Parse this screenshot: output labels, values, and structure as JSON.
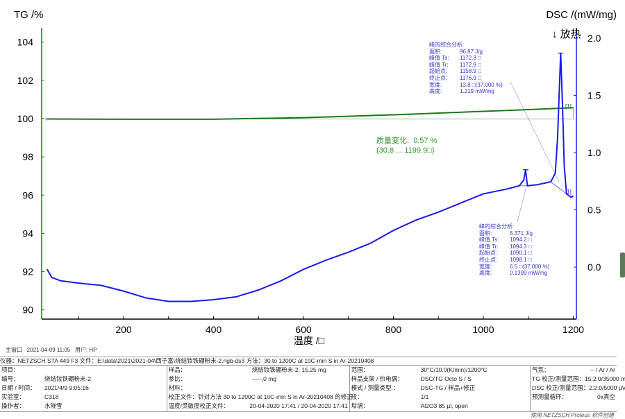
{
  "chart_data": {
    "type": "line",
    "xlabel": "温度 /□",
    "ylabel_left": "TG /%",
    "ylabel_right": "DSC /(mW/mg)",
    "exo_label": "↓ 放热",
    "xlim": [
      18,
      1207
    ],
    "ylim_left": [
      89.5,
      104.5
    ],
    "ylim_right": [
      -0.45,
      2.05
    ],
    "xticks": [
      200,
      400,
      600,
      800,
      1000,
      1200
    ],
    "yticks_left": [
      90,
      92,
      94,
      96,
      98,
      100,
      102,
      104
    ],
    "yticks_right": [
      0.0,
      0.5,
      1.0,
      1.5,
      2.0
    ],
    "series": [
      {
        "name": "TG",
        "axis": "left",
        "color": "#1a7a1a",
        "x": [
          30,
          200,
          400,
          600,
          800,
          1000,
          1100,
          1200
        ],
        "y": [
          99.98,
          99.97,
          99.97,
          100.05,
          100.2,
          100.38,
          100.47,
          100.57
        ]
      },
      {
        "name": "DSC",
        "axis": "right",
        "color": "#1a1aee",
        "x": [
          30,
          40,
          60,
          100,
          150,
          200,
          250,
          300,
          350,
          400,
          450,
          500,
          550,
          600,
          650,
          700,
          750,
          800,
          850,
          900,
          950,
          1000,
          1050,
          1080,
          1090,
          1094,
          1098,
          1120,
          1150,
          1160,
          1165,
          1172,
          1176,
          1180,
          1185,
          1195,
          1200
        ],
        "y": [
          -0.02,
          -0.09,
          -0.12,
          -0.14,
          -0.16,
          -0.21,
          -0.27,
          -0.3,
          -0.3,
          -0.285,
          -0.26,
          -0.2,
          -0.12,
          -0.02,
          0.06,
          0.13,
          0.21,
          0.32,
          0.41,
          0.48,
          0.56,
          0.64,
          0.68,
          0.71,
          0.76,
          0.85,
          0.71,
          0.72,
          0.745,
          0.82,
          1.12,
          1.87,
          1.42,
          0.88,
          0.64,
          0.61,
          0.62
        ]
      }
    ],
    "mass_change": {
      "label": "质量变化:",
      "value": "0.57 %",
      "range": "(30.8 ... 1199.9□)"
    },
    "peak_annotations": [
      {
        "title": "峰的综合分析:",
        "rows": [
          [
            "面积:",
            "96.87 J/g"
          ],
          [
            "峰值 Ts:",
            "1172.3 □"
          ],
          [
            "峰值 Tr:",
            "1172.9 □"
          ],
          [
            "起始点:",
            "1158.9 □"
          ],
          [
            "终止点:",
            "1176.9 □"
          ],
          [
            "宽度:",
            "13.8 □(37.000 %)"
          ],
          [
            "高度:",
            "1.219 mW/mg"
          ]
        ]
      },
      {
        "title": "峰的综合分析:",
        "rows": [
          [
            "面积:",
            "6.371 J/g"
          ],
          [
            "峰值 Ts:",
            "1094.2 □"
          ],
          [
            "峰值 Tr:",
            "1094.3 □"
          ],
          [
            "起始点:",
            "1090.1 □"
          ],
          [
            "终止点:",
            "1098.1 □"
          ],
          [
            "宽度:",
            "6.5 □(37.000 %)"
          ],
          [
            "高度:",
            "0.1399 mW/mg"
          ]
        ]
      }
    ],
    "markers": [
      "[1]",
      "[1]"
    ],
    "grid": false
  },
  "status": {
    "window": "主窗口",
    "datetime": "2021-04-09 11:05",
    "user": "用户: HP"
  },
  "info": {
    "header": "仪器：NETZSCH STA 449 F3  文件：E:\\data\\2021\\2021-04\\西子富\\烧结钕铁硼粉末-2.ngb-ds3  方法：30  to 1200C at 10C-min S in Ar-20210408",
    "col1": [
      [
        "项目：",
        ""
      ],
      [
        "编号：",
        "烧结钕铁硼粉末-2"
      ],
      [
        "日期 / 时间：",
        "2021/4/9 9:05:16"
      ],
      [
        "实验室：",
        "C318"
      ],
      [
        "操作者：",
        "水晓雪"
      ]
    ],
    "col2": [
      [
        "样品：",
        "烧结钕铁硼粉末-2, 15.25 mg"
      ],
      [
        "参比：",
        "-----,0 mg"
      ],
      [
        "材料：",
        ""
      ],
      [
        "校正文件：",
        "针对方法 30  to 1200C at 10C-min S in Ar-20210408 的修正"
      ],
      [
        "温度/灵敏度校正文件：",
        "20-04-2020 17:41 / 20-04-2020 17:41"
      ]
    ],
    "col3": [
      [
        "范围：",
        "30°C/10.0(K/min)/1200°C"
      ],
      [
        "样品支架 / 热电偶：",
        "DSC/TG Octo S / S"
      ],
      [
        "模式 / 测量类型.：",
        "DSC-TG / 样品+修正"
      ],
      [
        "段：",
        "1/1"
      ],
      [
        "坩埚：",
        "Al2O3 85 µl, open"
      ]
    ],
    "col4": [
      [
        "气氛：",
        "-- / Ar / Ar"
      ],
      [
        "TG 校正/测量范围：",
        "15:2:0/35000 mg"
      ],
      [
        "DSC 校正/测量范围：",
        "2:2:0/5000 µV"
      ],
      [
        "预测量循环：",
        "0x真空"
      ]
    ]
  },
  "credit": "使用 NETZSCH Proteus 软件创建"
}
